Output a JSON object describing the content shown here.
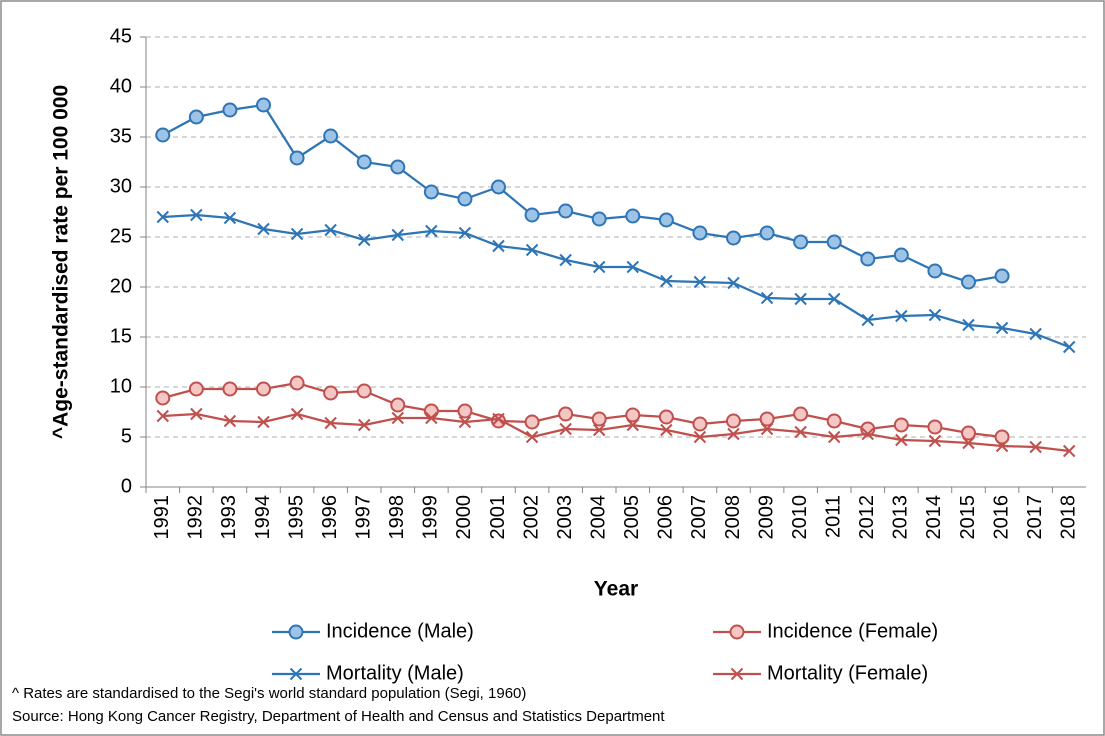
{
  "chart_data": {
    "type": "line",
    "y_label": "^Age-standardised rate per 100 000",
    "x_label": "Year",
    "categories": [
      "1991",
      "1992",
      "1993",
      "1994",
      "1995",
      "1996",
      "1997",
      "1998",
      "1999",
      "2000",
      "2001",
      "2002",
      "2003",
      "2004",
      "2005",
      "2006",
      "2007",
      "2008",
      "2009",
      "2010",
      "2011",
      "2012",
      "2013",
      "2014",
      "2015",
      "2016",
      "2017",
      "2018"
    ],
    "series": [
      {
        "name": "Incidence (Male)",
        "color": "#2e75b6",
        "marker": "circle",
        "marker_fill": "#9dc3e6",
        "values": [
          35.2,
          37.0,
          37.7,
          38.2,
          32.9,
          35.1,
          32.5,
          32.0,
          29.5,
          28.8,
          30.0,
          27.2,
          27.6,
          26.8,
          27.1,
          26.7,
          25.4,
          24.9,
          25.4,
          24.5,
          24.5,
          22.8,
          23.2,
          21.6,
          20.5,
          21.1,
          null,
          null
        ]
      },
      {
        "name": "Incidence (Female)",
        "color": "#c0504d",
        "marker": "circle",
        "marker_fill": "#f4c7c5",
        "values": [
          8.9,
          9.8,
          9.8,
          9.8,
          10.4,
          9.4,
          9.6,
          8.2,
          7.6,
          7.6,
          6.6,
          6.5,
          7.3,
          6.8,
          7.2,
          7.0,
          6.3,
          6.6,
          6.8,
          7.3,
          6.6,
          5.8,
          6.2,
          6.0,
          5.4,
          5.0,
          null,
          null
        ]
      },
      {
        "name": "Mortality (Male)",
        "color": "#2e75b6",
        "marker": "x",
        "marker_fill": "#2e75b6",
        "values": [
          27.0,
          27.2,
          26.9,
          25.8,
          25.3,
          25.7,
          24.7,
          25.2,
          25.6,
          25.4,
          24.1,
          23.7,
          22.7,
          22.0,
          22.0,
          20.6,
          20.5,
          20.4,
          18.9,
          18.8,
          18.8,
          16.7,
          17.1,
          17.2,
          16.2,
          15.9,
          15.3,
          14.0
        ]
      },
      {
        "name": "Mortality (Female)",
        "color": "#c0504d",
        "marker": "x",
        "marker_fill": "#c0504d",
        "values": [
          7.1,
          7.3,
          6.6,
          6.5,
          7.3,
          6.4,
          6.2,
          6.9,
          6.9,
          6.5,
          6.8,
          5.0,
          5.8,
          5.7,
          6.2,
          5.7,
          5.0,
          5.3,
          5.8,
          5.5,
          5.0,
          5.3,
          4.7,
          4.6,
          4.4,
          4.1,
          4.0,
          3.6
        ]
      }
    ],
    "ylim": [
      0,
      45
    ],
    "yticks": [
      0,
      5,
      10,
      15,
      20,
      25,
      30,
      35,
      40,
      45
    ],
    "grid": true,
    "notes": [
      "^ Rates are standardised to the Segi's world standard population (Segi, 1960)",
      "Source: Hong Kong Cancer Registry, Department of Health and Census and Statistics Department"
    ]
  }
}
